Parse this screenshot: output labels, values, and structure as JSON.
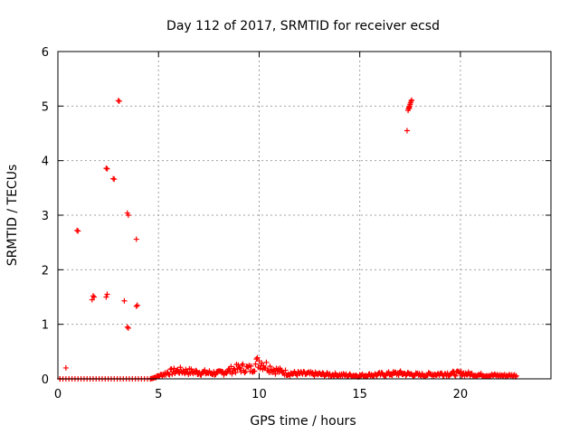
{
  "chart_data": {
    "type": "scatter",
    "title": "Day 112 of 2017, SRMTID for receiver ecsd",
    "xlabel": "GPS time / hours",
    "ylabel": "SRMTID / TECUs",
    "xlim": [
      0,
      24.5
    ],
    "ylim": [
      0,
      6
    ],
    "xticks": [
      0,
      5,
      10,
      15,
      20
    ],
    "yticks": [
      0,
      1,
      2,
      3,
      4,
      5,
      6
    ],
    "grid": true,
    "marker": "plus",
    "color": "#ff0000",
    "series": [
      {
        "name": "SRMTID",
        "points": [
          [
            0.1,
            0.0
          ],
          [
            0.4,
            0.2
          ],
          [
            0.95,
            2.72
          ],
          [
            1.0,
            2.71
          ],
          [
            1.7,
            1.45
          ],
          [
            1.75,
            1.52
          ],
          [
            1.8,
            1.5
          ],
          [
            2.4,
            3.86
          ],
          [
            2.45,
            3.85
          ],
          [
            2.4,
            1.5
          ],
          [
            2.45,
            1.55
          ],
          [
            2.75,
            3.67
          ],
          [
            2.8,
            3.66
          ],
          [
            3.0,
            5.1
          ],
          [
            3.05,
            5.09
          ],
          [
            3.3,
            1.43
          ],
          [
            3.45,
            3.04
          ],
          [
            3.5,
            3.0
          ],
          [
            3.45,
            0.95
          ],
          [
            3.5,
            0.93
          ],
          [
            3.9,
            2.56
          ],
          [
            3.95,
            1.35
          ],
          [
            3.9,
            1.33
          ],
          [
            17.35,
            4.55
          ],
          [
            17.4,
            4.92
          ],
          [
            17.42,
            4.95
          ],
          [
            17.45,
            4.98
          ],
          [
            17.48,
            5.0
          ],
          [
            17.5,
            5.03
          ],
          [
            17.52,
            5.06
          ],
          [
            17.55,
            5.09
          ],
          [
            17.58,
            5.11
          ],
          [
            17.46,
            4.96
          ]
        ],
        "baseline_early": {
          "x_start": 0.1,
          "x_end": 4.6,
          "value": 0.0
        },
        "noise_band": {
          "x_start": 4.6,
          "x_end": 22.8,
          "profile": [
            [
              4.6,
              0.0
            ],
            [
              5.0,
              0.05
            ],
            [
              5.5,
              0.12
            ],
            [
              6.0,
              0.15
            ],
            [
              7.0,
              0.12
            ],
            [
              8.0,
              0.1
            ],
            [
              8.8,
              0.18
            ],
            [
              9.2,
              0.2
            ],
            [
              9.6,
              0.18
            ],
            [
              10.0,
              0.33
            ],
            [
              10.3,
              0.25
            ],
            [
              10.8,
              0.16
            ],
            [
              11.5,
              0.1
            ],
            [
              12.5,
              0.09
            ],
            [
              14.0,
              0.07
            ],
            [
              15.0,
              0.06
            ],
            [
              16.0,
              0.08
            ],
            [
              17.0,
              0.1
            ],
            [
              18.0,
              0.07
            ],
            [
              19.0,
              0.09
            ],
            [
              20.0,
              0.1
            ],
            [
              21.0,
              0.07
            ],
            [
              22.0,
              0.06
            ],
            [
              22.8,
              0.06
            ]
          ]
        }
      }
    ]
  }
}
